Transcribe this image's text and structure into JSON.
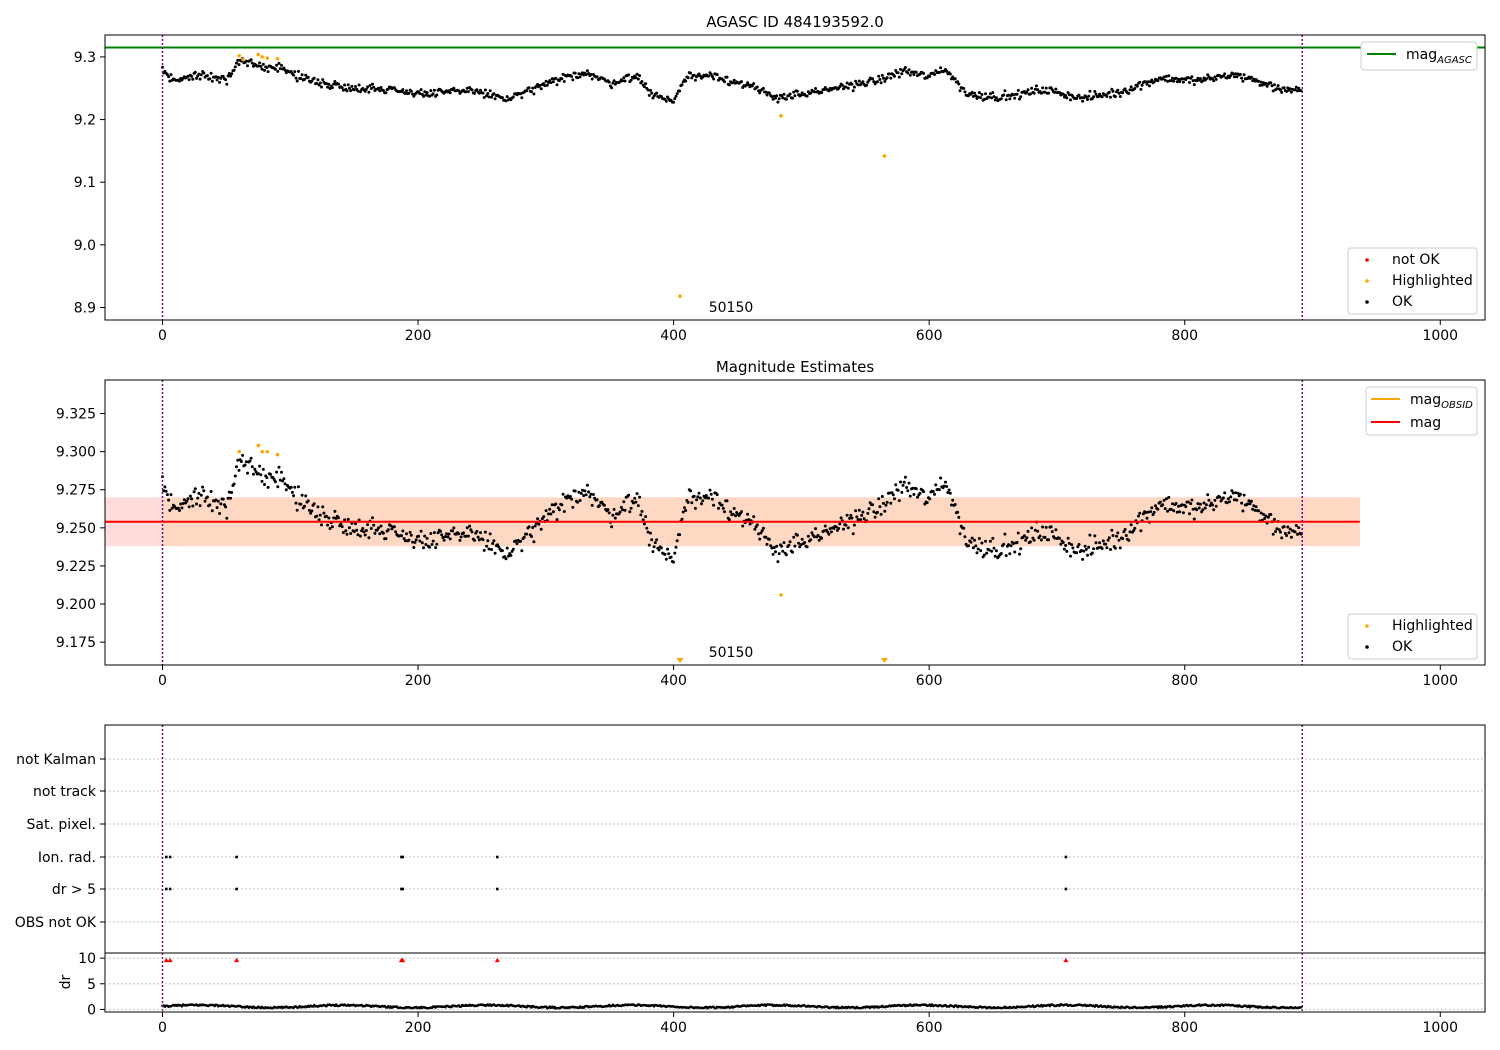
{
  "chart_data": [
    {
      "type": "scatter",
      "title": "AGASC ID 484193592.0",
      "xlim": [
        -45,
        1035
      ],
      "ylim": [
        8.88,
        9.335
      ],
      "xticks": [
        0,
        200,
        400,
        600,
        800,
        1000
      ],
      "yticks": [
        8.9,
        9.0,
        9.1,
        9.2,
        9.3
      ],
      "ytick_labels": [
        "8.9",
        "9.0",
        "9.1",
        "9.2",
        "9.3"
      ],
      "grid": false,
      "vlines": [
        0,
        892
      ],
      "obsid_label": {
        "text": "50150",
        "x": 445,
        "y": 8.9
      },
      "lines": [
        {
          "name": "mag_AGASC",
          "y": 9.315,
          "color": "#008000"
        }
      ],
      "trend_segments": [
        [
          0,
          9.28
        ],
        [
          10,
          9.262
        ],
        [
          30,
          9.272
        ],
        [
          50,
          9.262
        ],
        [
          60,
          9.292
        ],
        [
          75,
          9.286
        ],
        [
          90,
          9.284
        ],
        [
          110,
          9.266
        ],
        [
          140,
          9.252
        ],
        [
          180,
          9.248
        ],
        [
          210,
          9.24
        ],
        [
          240,
          9.248
        ],
        [
          270,
          9.232
        ],
        [
          300,
          9.256
        ],
        [
          330,
          9.276
        ],
        [
          350,
          9.258
        ],
        [
          370,
          9.27
        ],
        [
          385,
          9.238
        ],
        [
          400,
          9.23
        ],
        [
          410,
          9.268
        ],
        [
          430,
          9.272
        ],
        [
          460,
          9.252
        ],
        [
          480,
          9.236
        ],
        [
          510,
          9.242
        ],
        [
          540,
          9.256
        ],
        [
          560,
          9.262
        ],
        [
          580,
          9.278
        ],
        [
          600,
          9.268
        ],
        [
          612,
          9.282
        ],
        [
          630,
          9.24
        ],
        [
          660,
          9.236
        ],
        [
          690,
          9.248
        ],
        [
          720,
          9.234
        ],
        [
          750,
          9.244
        ],
        [
          780,
          9.266
        ],
        [
          810,
          9.262
        ],
        [
          840,
          9.272
        ],
        [
          870,
          9.252
        ],
        [
          892,
          9.244
        ]
      ],
      "noise": 0.012,
      "highlighted": [
        [
          60,
          9.302
        ],
        [
          63,
          9.296
        ],
        [
          75,
          9.304
        ],
        [
          78,
          9.3
        ],
        [
          82,
          9.298
        ],
        [
          90,
          9.297
        ],
        [
          405,
          8.918
        ],
        [
          484,
          9.206
        ],
        [
          565,
          9.142
        ]
      ],
      "legends": [
        {
          "position": "upper right",
          "entries": [
            {
              "label": "mag",
              "sub": "AGASC",
              "color": "#008000",
              "kind": "line"
            }
          ]
        },
        {
          "position": "lower right",
          "entries": [
            {
              "label": "not OK",
              "color": "#ff0000",
              "kind": "dot"
            },
            {
              "label": "Highlighted",
              "color": "#ffa500",
              "kind": "dot"
            },
            {
              "label": "OK",
              "color": "#000000",
              "kind": "dot"
            }
          ]
        }
      ]
    },
    {
      "type": "scatter",
      "title": "Magnitude Estimates",
      "xlim": [
        -45,
        1035
      ],
      "ylim": [
        9.16,
        9.347
      ],
      "xticks": [
        0,
        200,
        400,
        600,
        800,
        1000
      ],
      "yticks": [
        9.175,
        9.2,
        9.225,
        9.25,
        9.275,
        9.3,
        9.325
      ],
      "ytick_labels": [
        "9.175",
        "9.200",
        "9.225",
        "9.250",
        "9.275",
        "9.300",
        "9.325"
      ],
      "grid": false,
      "vlines": [
        0,
        892
      ],
      "obsid_label": {
        "text": "50150",
        "x": 445,
        "y": 9.164
      },
      "lines": [
        {
          "name": "mag",
          "y": 9.254,
          "color": "#ff0000",
          "xrange": [
            -45,
            937
          ]
        }
      ],
      "bands": [
        {
          "y1": 9.238,
          "y2": 9.27,
          "xrange": [
            -45,
            937
          ],
          "color": "#ffdddd"
        },
        {
          "y1": 9.238,
          "y2": 9.27,
          "xrange": [
            0,
            937
          ],
          "color": "#ffd8c4"
        }
      ],
      "trend_segments": [
        [
          0,
          9.28
        ],
        [
          10,
          9.262
        ],
        [
          30,
          9.272
        ],
        [
          50,
          9.262
        ],
        [
          60,
          9.292
        ],
        [
          75,
          9.286
        ],
        [
          90,
          9.284
        ],
        [
          110,
          9.266
        ],
        [
          140,
          9.252
        ],
        [
          180,
          9.248
        ],
        [
          210,
          9.24
        ],
        [
          240,
          9.248
        ],
        [
          270,
          9.232
        ],
        [
          300,
          9.256
        ],
        [
          330,
          9.276
        ],
        [
          350,
          9.258
        ],
        [
          370,
          9.27
        ],
        [
          385,
          9.238
        ],
        [
          400,
          9.23
        ],
        [
          410,
          9.268
        ],
        [
          430,
          9.272
        ],
        [
          460,
          9.252
        ],
        [
          480,
          9.236
        ],
        [
          510,
          9.242
        ],
        [
          540,
          9.256
        ],
        [
          560,
          9.262
        ],
        [
          580,
          9.278
        ],
        [
          600,
          9.268
        ],
        [
          612,
          9.282
        ],
        [
          630,
          9.24
        ],
        [
          660,
          9.236
        ],
        [
          690,
          9.248
        ],
        [
          720,
          9.234
        ],
        [
          750,
          9.244
        ],
        [
          780,
          9.266
        ],
        [
          810,
          9.262
        ],
        [
          840,
          9.272
        ],
        [
          870,
          9.252
        ],
        [
          892,
          9.244
        ]
      ],
      "noise": 0.012,
      "highlighted": [
        [
          60,
          9.3
        ],
        [
          75,
          9.304
        ],
        [
          78,
          9.3
        ],
        [
          82,
          9.3
        ],
        [
          90,
          9.298
        ],
        [
          484,
          9.206
        ]
      ],
      "markers_below": [
        {
          "x": 405,
          "color": "#ffa500"
        },
        {
          "x": 565,
          "color": "#ffa500"
        }
      ],
      "legends": [
        {
          "position": "upper right",
          "entries": [
            {
              "label": "mag",
              "sub": "OBSID",
              "color": "#ffa500",
              "kind": "line"
            },
            {
              "label": "mag",
              "color": "#ff0000",
              "kind": "line"
            }
          ]
        },
        {
          "position": "lower right",
          "entries": [
            {
              "label": "Highlighted",
              "color": "#ffa500",
              "kind": "dot"
            },
            {
              "label": "OK",
              "color": "#000000",
              "kind": "dot"
            }
          ]
        }
      ]
    },
    {
      "type": "scatter",
      "xlim": [
        -45,
        1035
      ],
      "categories": [
        "not Kalman",
        "not track",
        "Sat. pixel.",
        "Ion. rad.",
        "dr > 5",
        "OBS not OK"
      ],
      "vlines": [
        0,
        892
      ],
      "flags": {
        "Ion. rad.": [
          3,
          6,
          58,
          187,
          188,
          262,
          707
        ],
        "dr > 5": [
          3,
          6,
          58,
          187,
          188,
          262,
          707
        ]
      }
    },
    {
      "type": "scatter",
      "xlim": [
        -45,
        1035
      ],
      "ylim": [
        -0.5,
        11
      ],
      "yticks": [
        0,
        5,
        10
      ],
      "ytick_labels": [
        "0",
        "5",
        "10"
      ],
      "ylabel": "dr",
      "xticks": [
        0,
        200,
        400,
        600,
        800,
        1000
      ],
      "vlines": [
        0,
        892
      ],
      "hline": 10,
      "red_markers": [
        3,
        6,
        58,
        187,
        188,
        262,
        707
      ],
      "baseline": 0.6
    }
  ]
}
